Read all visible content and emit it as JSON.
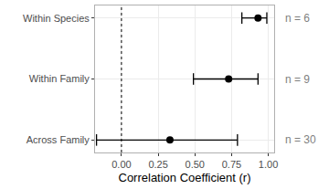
{
  "chart_data": {
    "type": "forest",
    "x_label": "Correlation Coefficient (r)",
    "categories": [
      "Within Species",
      "Within Family",
      "Across Family"
    ],
    "values": [
      0.93,
      0.73,
      0.33
    ],
    "lower": [
      0.82,
      0.49,
      -0.17
    ],
    "upper": [
      0.99,
      0.93,
      0.79
    ],
    "n_labels": [
      "n = 6",
      "n = 9",
      "n = 30"
    ],
    "reference_line": 0,
    "color": "#000000",
    "xlim": [
      -0.18,
      1.04
    ],
    "xticks": [
      {
        "value": 0,
        "label": "0.00"
      },
      {
        "value": 0.25,
        "label": "0.25"
      },
      {
        "value": 0.5,
        "label": "0.50"
      },
      {
        "value": 0.75,
        "label": "0.75"
      },
      {
        "value": 1,
        "label": "1.00"
      }
    ],
    "grid": true
  }
}
